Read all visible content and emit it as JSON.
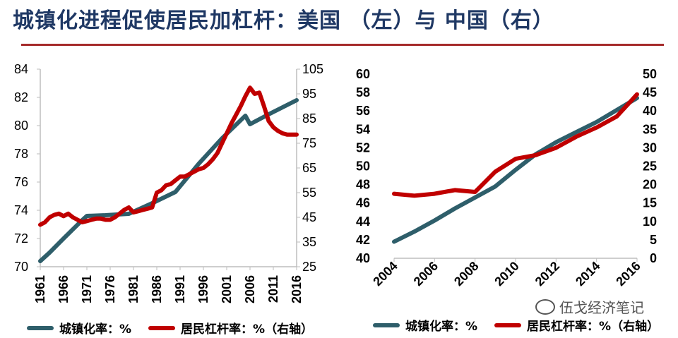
{
  "title": "城镇化进程促使居民加杠杆：美国 （左）与 中国（右）",
  "colors": {
    "urbanization": "#2e5e6a",
    "leverage": "#c00000",
    "title": "#1f3864",
    "rule": "#a52a2a"
  },
  "watermark": "伍戈经济笔记",
  "watermark_icon": "wechat-icon",
  "chart_data": [
    {
      "type": "line",
      "xlim": [
        1961,
        2016
      ],
      "xticks": [
        "1961",
        "1966",
        "1971",
        "1976",
        "1981",
        "1986",
        "1991",
        "1996",
        "2001",
        "2006",
        "2011",
        "2016"
      ],
      "ylim_left": [
        70,
        84
      ],
      "yticks_left": [
        "70",
        "72",
        "74",
        "76",
        "78",
        "80",
        "82",
        "84"
      ],
      "ylim_right": [
        25,
        105
      ],
      "yticks_right": [
        "25",
        "35",
        "45",
        "55",
        "65",
        "75",
        "85",
        "95",
        "105"
      ],
      "series": [
        {
          "name": "城镇化率：%",
          "axis": "left",
          "x": [
            1961,
            1963,
            1966,
            1970,
            1971,
            1975,
            1980,
            1985,
            1990,
            1995,
            2000,
            2005,
            2006,
            2010,
            2016
          ],
          "y": [
            70.4,
            71.0,
            72.0,
            73.3,
            73.6,
            73.65,
            73.75,
            74.5,
            75.3,
            77.3,
            79.1,
            80.7,
            80.1,
            80.8,
            81.8
          ]
        },
        {
          "name": "居民杠杆率：%（右轴）",
          "axis": "right",
          "x": [
            1961,
            1962,
            1963,
            1964,
            1965,
            1966,
            1967,
            1968,
            1969,
            1970,
            1971,
            1972,
            1973,
            1974,
            1975,
            1976,
            1977,
            1978,
            1979,
            1980,
            1981,
            1982,
            1983,
            1984,
            1985,
            1986,
            1987,
            1988,
            1989,
            1990,
            1991,
            1992,
            1993,
            1994,
            1995,
            1996,
            1997,
            1998,
            1999,
            2000,
            2001,
            2002,
            2003,
            2004,
            2005,
            2006,
            2007,
            2008,
            2009,
            2010,
            2011,
            2012,
            2013,
            2014,
            2015,
            2016
          ],
          "y": [
            42,
            43,
            45,
            46,
            46.5,
            45.5,
            46.5,
            45,
            44,
            43,
            43.5,
            44,
            44.5,
            44.5,
            44,
            44,
            45,
            46.5,
            48,
            49,
            47,
            47.5,
            48,
            48.5,
            49,
            55,
            56,
            58,
            58.5,
            60,
            61.5,
            61.5,
            62.5,
            63.5,
            64.5,
            65,
            66.5,
            68.5,
            71,
            75,
            79,
            83,
            86.5,
            90,
            94,
            97.5,
            95,
            95.5,
            90,
            84,
            81.5,
            80,
            79,
            78.5,
            78.5,
            78.5
          ]
        }
      ]
    },
    {
      "type": "line",
      "xlim": [
        2004,
        2016
      ],
      "xticks": [
        "2004",
        "2006",
        "2008",
        "2010",
        "2012",
        "2014",
        "2016"
      ],
      "ylim_left": [
        40,
        60
      ],
      "yticks_left": [
        "40",
        "42",
        "44",
        "46",
        "48",
        "50",
        "52",
        "54",
        "56",
        "58",
        "60"
      ],
      "ylim_right": [
        0,
        50
      ],
      "yticks_right": [
        "0",
        "5",
        "10",
        "15",
        "20",
        "25",
        "30",
        "35",
        "40",
        "45",
        "50"
      ],
      "series": [
        {
          "name": "城镇化率：%",
          "axis": "left",
          "x": [
            2004,
            2005,
            2006,
            2007,
            2008,
            2009,
            2010,
            2011,
            2012,
            2013,
            2014,
            2015,
            2016
          ],
          "y": [
            41.8,
            42.9,
            44.1,
            45.4,
            46.6,
            47.8,
            49.6,
            51.3,
            52.6,
            53.7,
            54.8,
            56.1,
            57.4
          ]
        },
        {
          "name": "居民杠杆率：%（右轴）",
          "axis": "right",
          "x": [
            2004,
            2005,
            2006,
            2007,
            2008,
            2009,
            2010,
            2011,
            2012,
            2013,
            2014,
            2015,
            2016
          ],
          "y": [
            17.5,
            17,
            17.5,
            18.5,
            18,
            23.5,
            27,
            28,
            30,
            33,
            35.5,
            38.5,
            44.5
          ]
        }
      ]
    }
  ],
  "legends": [
    {
      "urbanization_label": "城镇化率：%",
      "leverage_label": "居民杠杆率：%（右轴）"
    },
    {
      "urbanization_label": "城镇化率：%",
      "leverage_label": "居民杠杆率：%（右轴）"
    }
  ]
}
